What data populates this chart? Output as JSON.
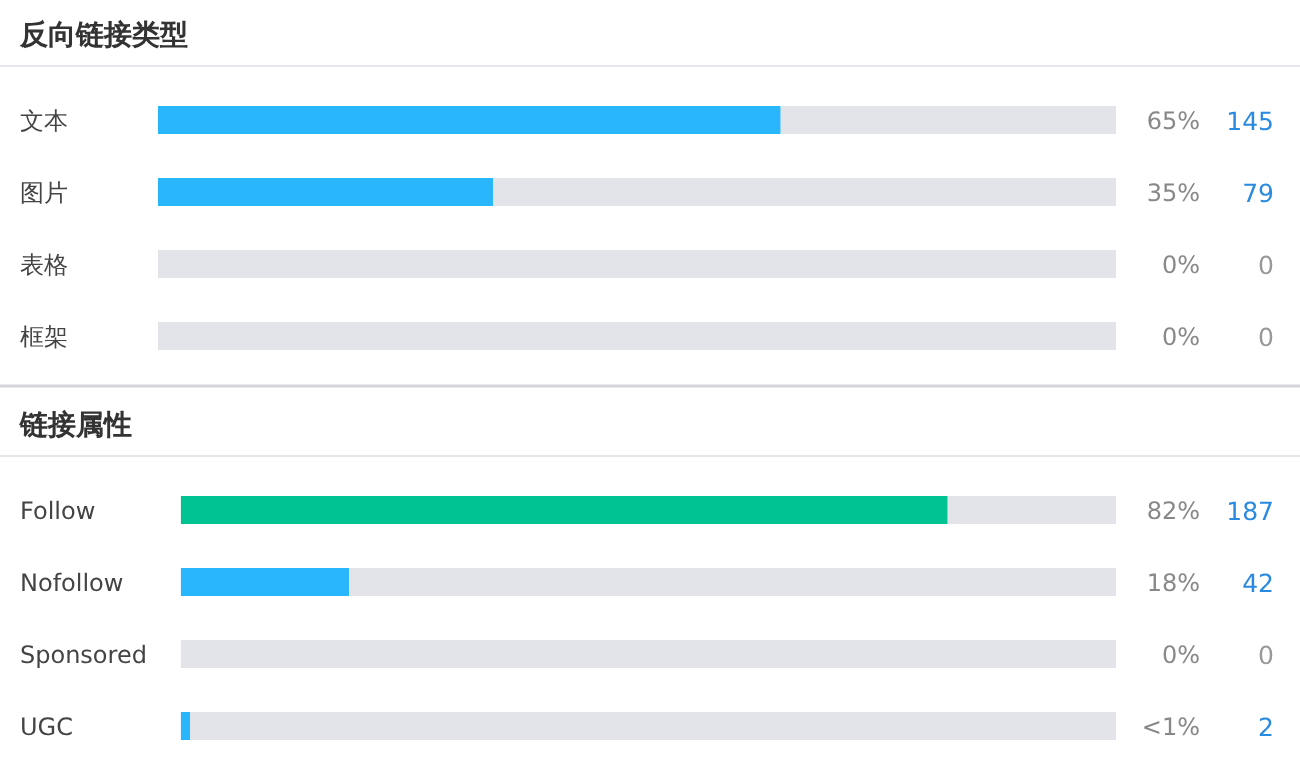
{
  "chart_data": [
    {
      "type": "bar",
      "orientation": "horizontal",
      "stacked": true,
      "title": "反向链接类型",
      "categories": [
        "文本",
        "图片",
        "表格",
        "框架"
      ],
      "xlim": [
        0,
        100
      ],
      "series": [
        {
          "colors": [
            "#29b6fc",
            "#29b6fc",
            "#29b6fc",
            "#29b6fc"
          ],
          "values": [
            65,
            35,
            0,
            0
          ],
          "value_labels": [
            "65%",
            "35%",
            "0%",
            "0%"
          ]
        },
        {
          "color": "#e3e3ea",
          "values": [
            35,
            65,
            100,
            100
          ]
        }
      ],
      "annotations": [
        "145",
        "79",
        "0",
        "0"
      ]
    },
    {
      "type": "bar",
      "orientation": "horizontal",
      "stacked": true,
      "title": "链接属性",
      "categories": [
        "Follow",
        "Nofollow",
        "Sponsored",
        "UGC"
      ],
      "xlim": [
        0,
        100
      ],
      "series": [
        {
          "colors": [
            "#00c393",
            "#29b6fc",
            "#29b6fc",
            "#29b6fc"
          ],
          "values": [
            82,
            18,
            0,
            1
          ],
          "value_labels": [
            "82%",
            "18%",
            "0%",
            "<1%"
          ]
        },
        {
          "color": "#e3e3ea",
          "values": [
            18,
            82,
            100,
            99
          ]
        }
      ],
      "annotations": [
        "187",
        "42",
        "0",
        "2"
      ]
    }
  ]
}
